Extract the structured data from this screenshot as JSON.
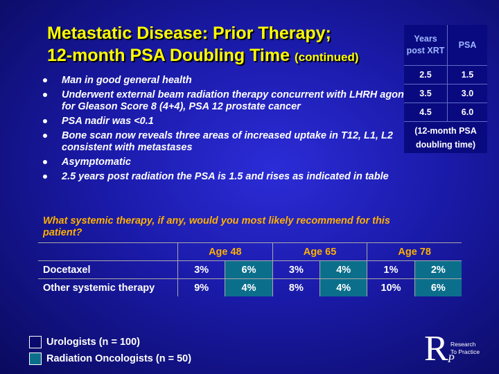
{
  "title": {
    "line1": "Metastatic Disease: Prior Therapy;",
    "line2": "12-month PSA Doubling Time",
    "line2_suffix": "(continued)"
  },
  "bullets": [
    "Man in good general health",
    "Underwent external beam radiation therapy concurrent with LHRH agonist for Gleason Score 8 (4+4), PSA 12 prostate cancer",
    "PSA nadir was <0.1",
    "Bone scan now reveals three areas of increased uptake in T12, L1, L2 consistent with metastases",
    "Asymptomatic",
    "2.5 years post radiation the PSA is 1.5 and rises as indicated in table"
  ],
  "psa_table": {
    "col1_header": "Years post XRT",
    "col2_header": "PSA",
    "rows": [
      {
        "years": "2.5",
        "psa": "1.5"
      },
      {
        "years": "3.5",
        "psa": "3.0"
      },
      {
        "years": "4.5",
        "psa": "6.0"
      }
    ],
    "footer": "(12-month PSA doubling time)"
  },
  "question": "What systemic therapy, if any, would you most likely recommend for this patient?",
  "results": {
    "age_groups": [
      "Age 48",
      "Age 65",
      "Age 78"
    ],
    "rows": [
      {
        "label": "Docetaxel",
        "values": [
          "3%",
          "6%",
          "3%",
          "4%",
          "1%",
          "2%"
        ]
      },
      {
        "label": "Other systemic therapy",
        "values": [
          "9%",
          "4%",
          "8%",
          "4%",
          "10%",
          "6%"
        ]
      }
    ]
  },
  "legend": {
    "urologists": "Urologists  (n = 100)",
    "radiation_oncologists": "Radiation Oncologists  (n = 50)"
  },
  "logo": {
    "line1": "Research",
    "line2": "To Practice"
  },
  "colors": {
    "title": "#ffff00",
    "question": "#ffb000",
    "radiation_oncologists": "#0b6f8c",
    "background": "#1a1aa8"
  }
}
